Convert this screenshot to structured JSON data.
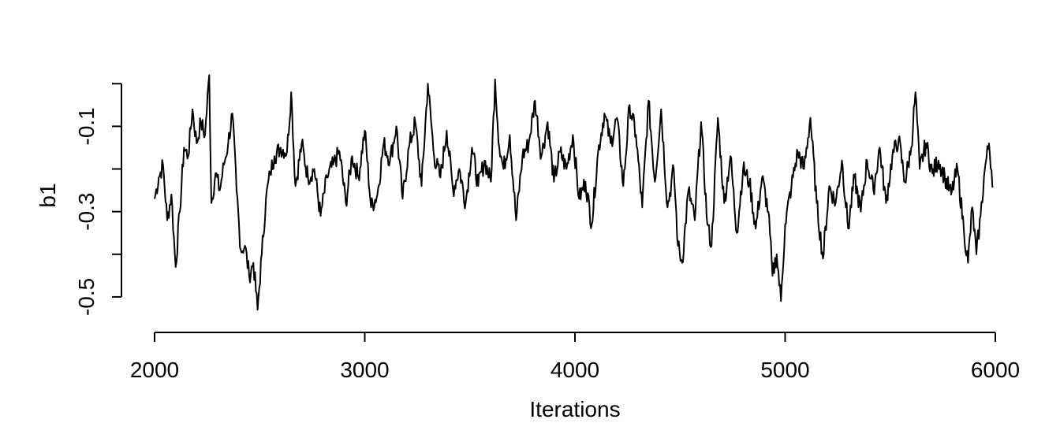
{
  "chart_data": {
    "type": "line",
    "title": "",
    "xlabel": "Iterations",
    "ylabel": "b1",
    "xlim": [
      2000,
      6000
    ],
    "ylim": [
      -0.55,
      0.03
    ],
    "xticks": [
      2000,
      3000,
      4000,
      5000,
      6000
    ],
    "xtick_labels": [
      "2000",
      "3000",
      "4000",
      "5000",
      "6000"
    ],
    "yticks": [
      -0.5,
      -0.4,
      -0.3,
      -0.2,
      -0.1,
      0.0
    ],
    "ytick_labels": [
      "-0.5",
      "",
      "-0.3",
      "",
      "-0.1",
      ""
    ],
    "grid": false,
    "line_color": "#000000",
    "series": [
      {
        "x": [
          2000,
          2020,
          2040,
          2060,
          2080,
          2100,
          2120,
          2140,
          2160,
          2180,
          2200,
          2220,
          2240,
          2260,
          2270,
          2290,
          2310,
          2330,
          2350,
          2370,
          2390,
          2410,
          2430,
          2450,
          2470,
          2490,
          2510,
          2530,
          2550,
          2570,
          2600,
          2630,
          2650,
          2670,
          2700,
          2730,
          2760,
          2790,
          2820,
          2850,
          2880,
          2910,
          2940,
          2970,
          3000,
          3030,
          3060,
          3090,
          3120,
          3150,
          3180,
          3210,
          3240,
          3270,
          3300,
          3330,
          3360,
          3390,
          3420,
          3450,
          3480,
          3510,
          3540,
          3570,
          3600,
          3620,
          3640,
          3660,
          3690,
          3720,
          3750,
          3780,
          3810,
          3840,
          3870,
          3900,
          3930,
          3960,
          3990,
          4020,
          4050,
          4080,
          4110,
          4140,
          4170,
          4200,
          4230,
          4260,
          4290,
          4320,
          4350,
          4380,
          4410,
          4440,
          4470,
          4490,
          4510,
          4540,
          4570,
          4600,
          4630,
          4650,
          4680,
          4710,
          4740,
          4770,
          4800,
          4830,
          4860,
          4890,
          4920,
          4940,
          4960,
          4980,
          5000,
          5030,
          5060,
          5090,
          5120,
          5150,
          5180,
          5210,
          5240,
          5270,
          5300,
          5330,
          5360,
          5390,
          5420,
          5450,
          5480,
          5510,
          5540,
          5570,
          5600,
          5620,
          5640,
          5670,
          5700,
          5730,
          5760,
          5790,
          5820,
          5850,
          5870,
          5890,
          5910,
          5930,
          5950,
          5970,
          5990
        ],
        "values": [
          -0.27,
          -0.22,
          -0.19,
          -0.32,
          -0.26,
          -0.43,
          -0.3,
          -0.15,
          -0.17,
          -0.06,
          -0.14,
          -0.09,
          -0.12,
          0.02,
          -0.28,
          -0.21,
          -0.25,
          -0.19,
          -0.14,
          -0.07,
          -0.25,
          -0.39,
          -0.38,
          -0.45,
          -0.42,
          -0.53,
          -0.4,
          -0.27,
          -0.21,
          -0.17,
          -0.15,
          -0.16,
          -0.02,
          -0.24,
          -0.14,
          -0.22,
          -0.2,
          -0.31,
          -0.22,
          -0.19,
          -0.16,
          -0.28,
          -0.17,
          -0.22,
          -0.11,
          -0.29,
          -0.26,
          -0.14,
          -0.18,
          -0.1,
          -0.27,
          -0.15,
          -0.09,
          -0.24,
          0.0,
          -0.17,
          -0.22,
          -0.11,
          -0.25,
          -0.2,
          -0.28,
          -0.15,
          -0.24,
          -0.18,
          -0.23,
          0.01,
          -0.15,
          -0.2,
          -0.12,
          -0.32,
          -0.17,
          -0.14,
          -0.04,
          -0.17,
          -0.09,
          -0.23,
          -0.16,
          -0.2,
          -0.12,
          -0.27,
          -0.23,
          -0.33,
          -0.16,
          -0.07,
          -0.14,
          -0.08,
          -0.24,
          -0.05,
          -0.12,
          -0.29,
          -0.04,
          -0.23,
          -0.06,
          -0.29,
          -0.2,
          -0.38,
          -0.42,
          -0.25,
          -0.32,
          -0.09,
          -0.33,
          -0.38,
          -0.08,
          -0.28,
          -0.17,
          -0.35,
          -0.2,
          -0.23,
          -0.34,
          -0.22,
          -0.3,
          -0.45,
          -0.4,
          -0.51,
          -0.33,
          -0.24,
          -0.16,
          -0.2,
          -0.08,
          -0.28,
          -0.41,
          -0.24,
          -0.28,
          -0.18,
          -0.34,
          -0.22,
          -0.3,
          -0.18,
          -0.25,
          -0.15,
          -0.28,
          -0.17,
          -0.13,
          -0.23,
          -0.15,
          -0.02,
          -0.2,
          -0.14,
          -0.21,
          -0.18,
          -0.22,
          -0.26,
          -0.2,
          -0.34,
          -0.42,
          -0.29,
          -0.4,
          -0.31,
          -0.2,
          -0.14,
          -0.24
        ]
      }
    ]
  }
}
